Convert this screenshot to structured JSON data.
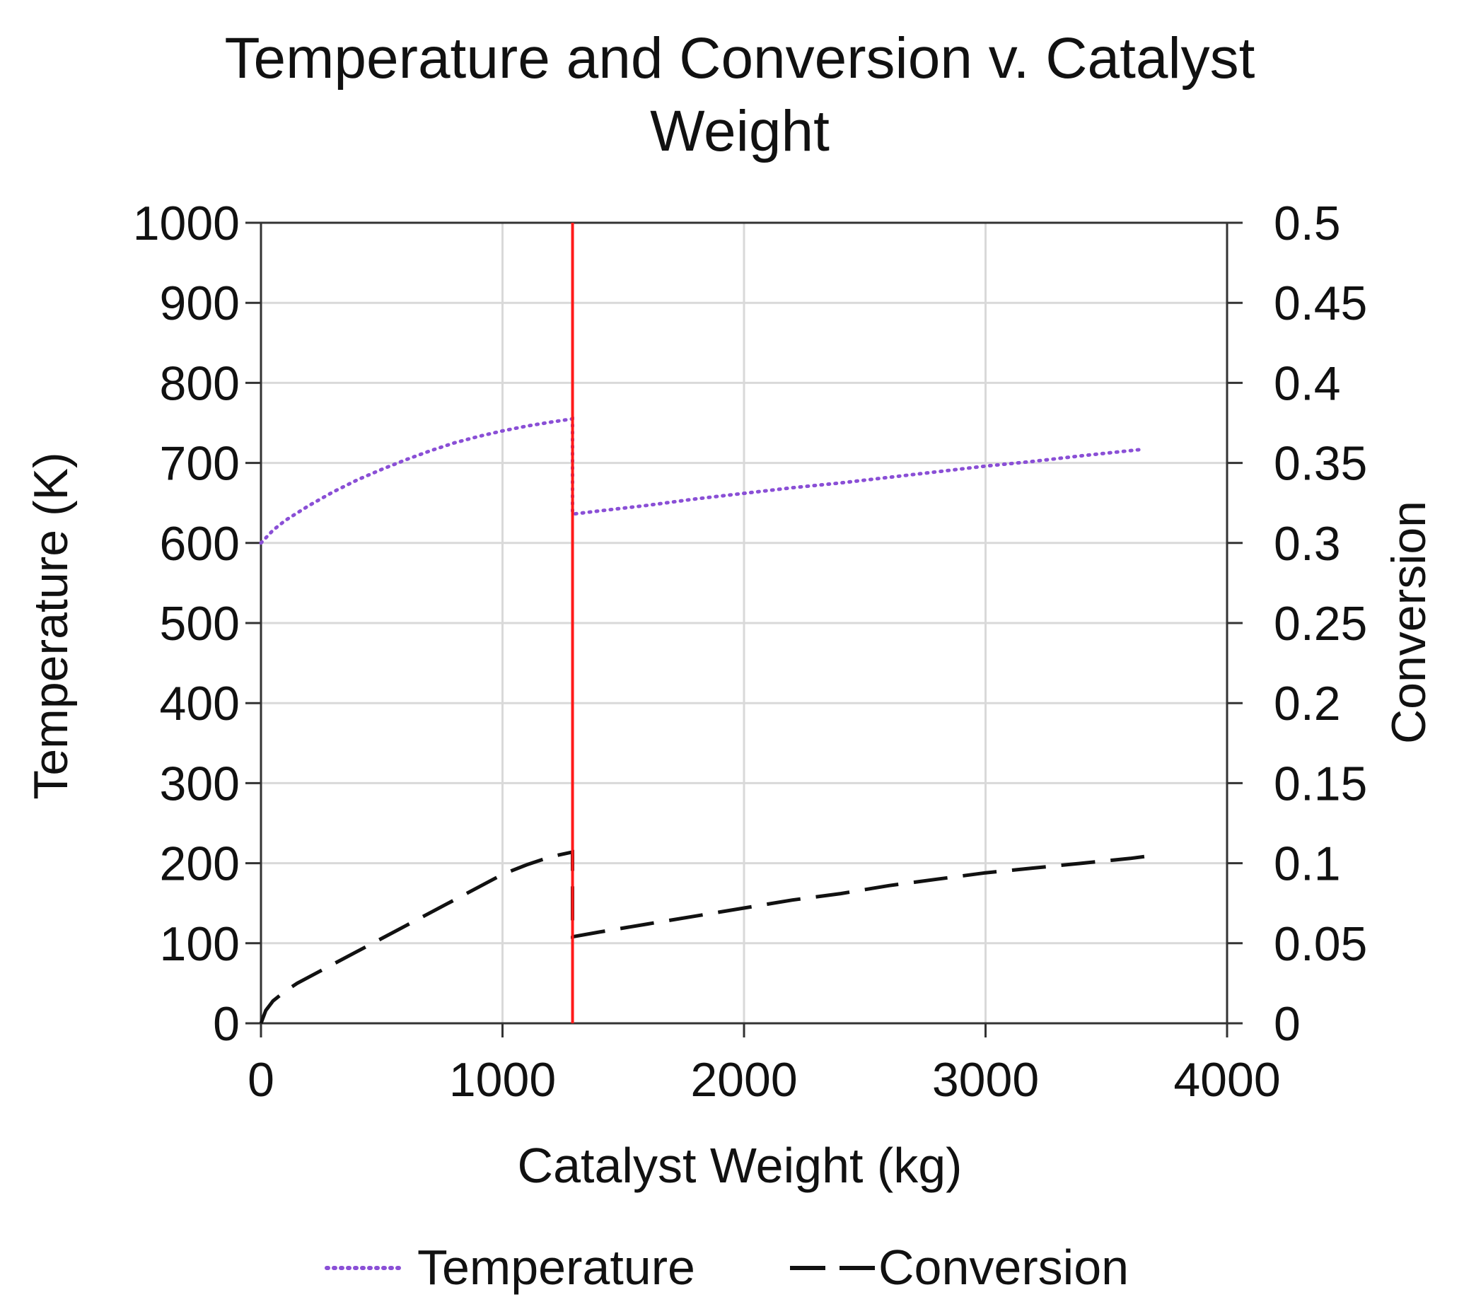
{
  "chart_data": {
    "type": "line",
    "title_lines": [
      "Temperature and Conversion v. Catalyst",
      "Weight"
    ],
    "xlabel": "Catalyst Weight (kg)",
    "ylabel_left": "Temperature (K)",
    "ylabel_right": "Conversion",
    "xlim": [
      0,
      4000
    ],
    "ylim_left": [
      0,
      1000
    ],
    "ylim_right": [
      0,
      0.5
    ],
    "x_ticks": [
      "0",
      "1000",
      "2000",
      "3000",
      "4000"
    ],
    "y_left_ticks": [
      "0",
      "100",
      "200",
      "300",
      "400",
      "500",
      "600",
      "700",
      "800",
      "900",
      "1000"
    ],
    "y_right_ticks": [
      "0",
      "0.05",
      "0.1",
      "0.15",
      "0.2",
      "0.25",
      "0.3",
      "0.35",
      "0.4",
      "0.45",
      "0.5"
    ],
    "grid": true,
    "legend_position": "bottom",
    "reference_line": {
      "x": 1290,
      "color": "#ff1a1a"
    },
    "series": [
      {
        "name": "Temperature",
        "axis": "left",
        "style": "dotted",
        "color": "#8a4fd6",
        "segments": [
          [
            [
              0,
              600
            ],
            [
              50,
              616
            ],
            [
              100,
              628
            ],
            [
              200,
              647
            ],
            [
              300,
              664
            ],
            [
              400,
              679
            ],
            [
              500,
              692
            ],
            [
              600,
              704
            ],
            [
              700,
              715
            ],
            [
              800,
              725
            ],
            [
              900,
              733
            ],
            [
              1000,
              740
            ],
            [
              1100,
              746
            ],
            [
              1200,
              751
            ],
            [
              1290,
              755
            ]
          ],
          [
            [
              1290,
              636
            ],
            [
              1400,
              640
            ],
            [
              1600,
              647
            ],
            [
              1800,
              655
            ],
            [
              2000,
              662
            ],
            [
              2200,
              669
            ],
            [
              2400,
              675
            ],
            [
              2600,
              682
            ],
            [
              2800,
              689
            ],
            [
              3000,
              696
            ],
            [
              3200,
              702
            ],
            [
              3400,
              709
            ],
            [
              3650,
              717
            ]
          ]
        ]
      },
      {
        "name": "Conversion",
        "axis": "right",
        "style": "dashed",
        "color": "#111111",
        "segments": [
          [
            [
              0,
              0
            ],
            [
              20,
              0.008
            ],
            [
              50,
              0.014
            ],
            [
              100,
              0.02
            ],
            [
              150,
              0.025
            ],
            [
              200,
              0.029
            ],
            [
              300,
              0.037
            ],
            [
              400,
              0.045
            ],
            [
              500,
              0.053
            ],
            [
              600,
              0.061
            ],
            [
              700,
              0.069
            ],
            [
              800,
              0.077
            ],
            [
              900,
              0.085
            ],
            [
              1000,
              0.093
            ],
            [
              1100,
              0.099
            ],
            [
              1200,
              0.104
            ],
            [
              1290,
              0.107
            ]
          ],
          [
            [
              1290,
              0.054
            ],
            [
              1400,
              0.057
            ],
            [
              1600,
              0.062
            ],
            [
              1800,
              0.067
            ],
            [
              2000,
              0.072
            ],
            [
              2200,
              0.077
            ],
            [
              2400,
              0.081
            ],
            [
              2600,
              0.086
            ],
            [
              2800,
              0.09
            ],
            [
              3000,
              0.094
            ],
            [
              3200,
              0.097
            ],
            [
              3400,
              0.1
            ],
            [
              3600,
              0.103
            ],
            [
              3700,
              0.105
            ]
          ]
        ]
      }
    ]
  }
}
